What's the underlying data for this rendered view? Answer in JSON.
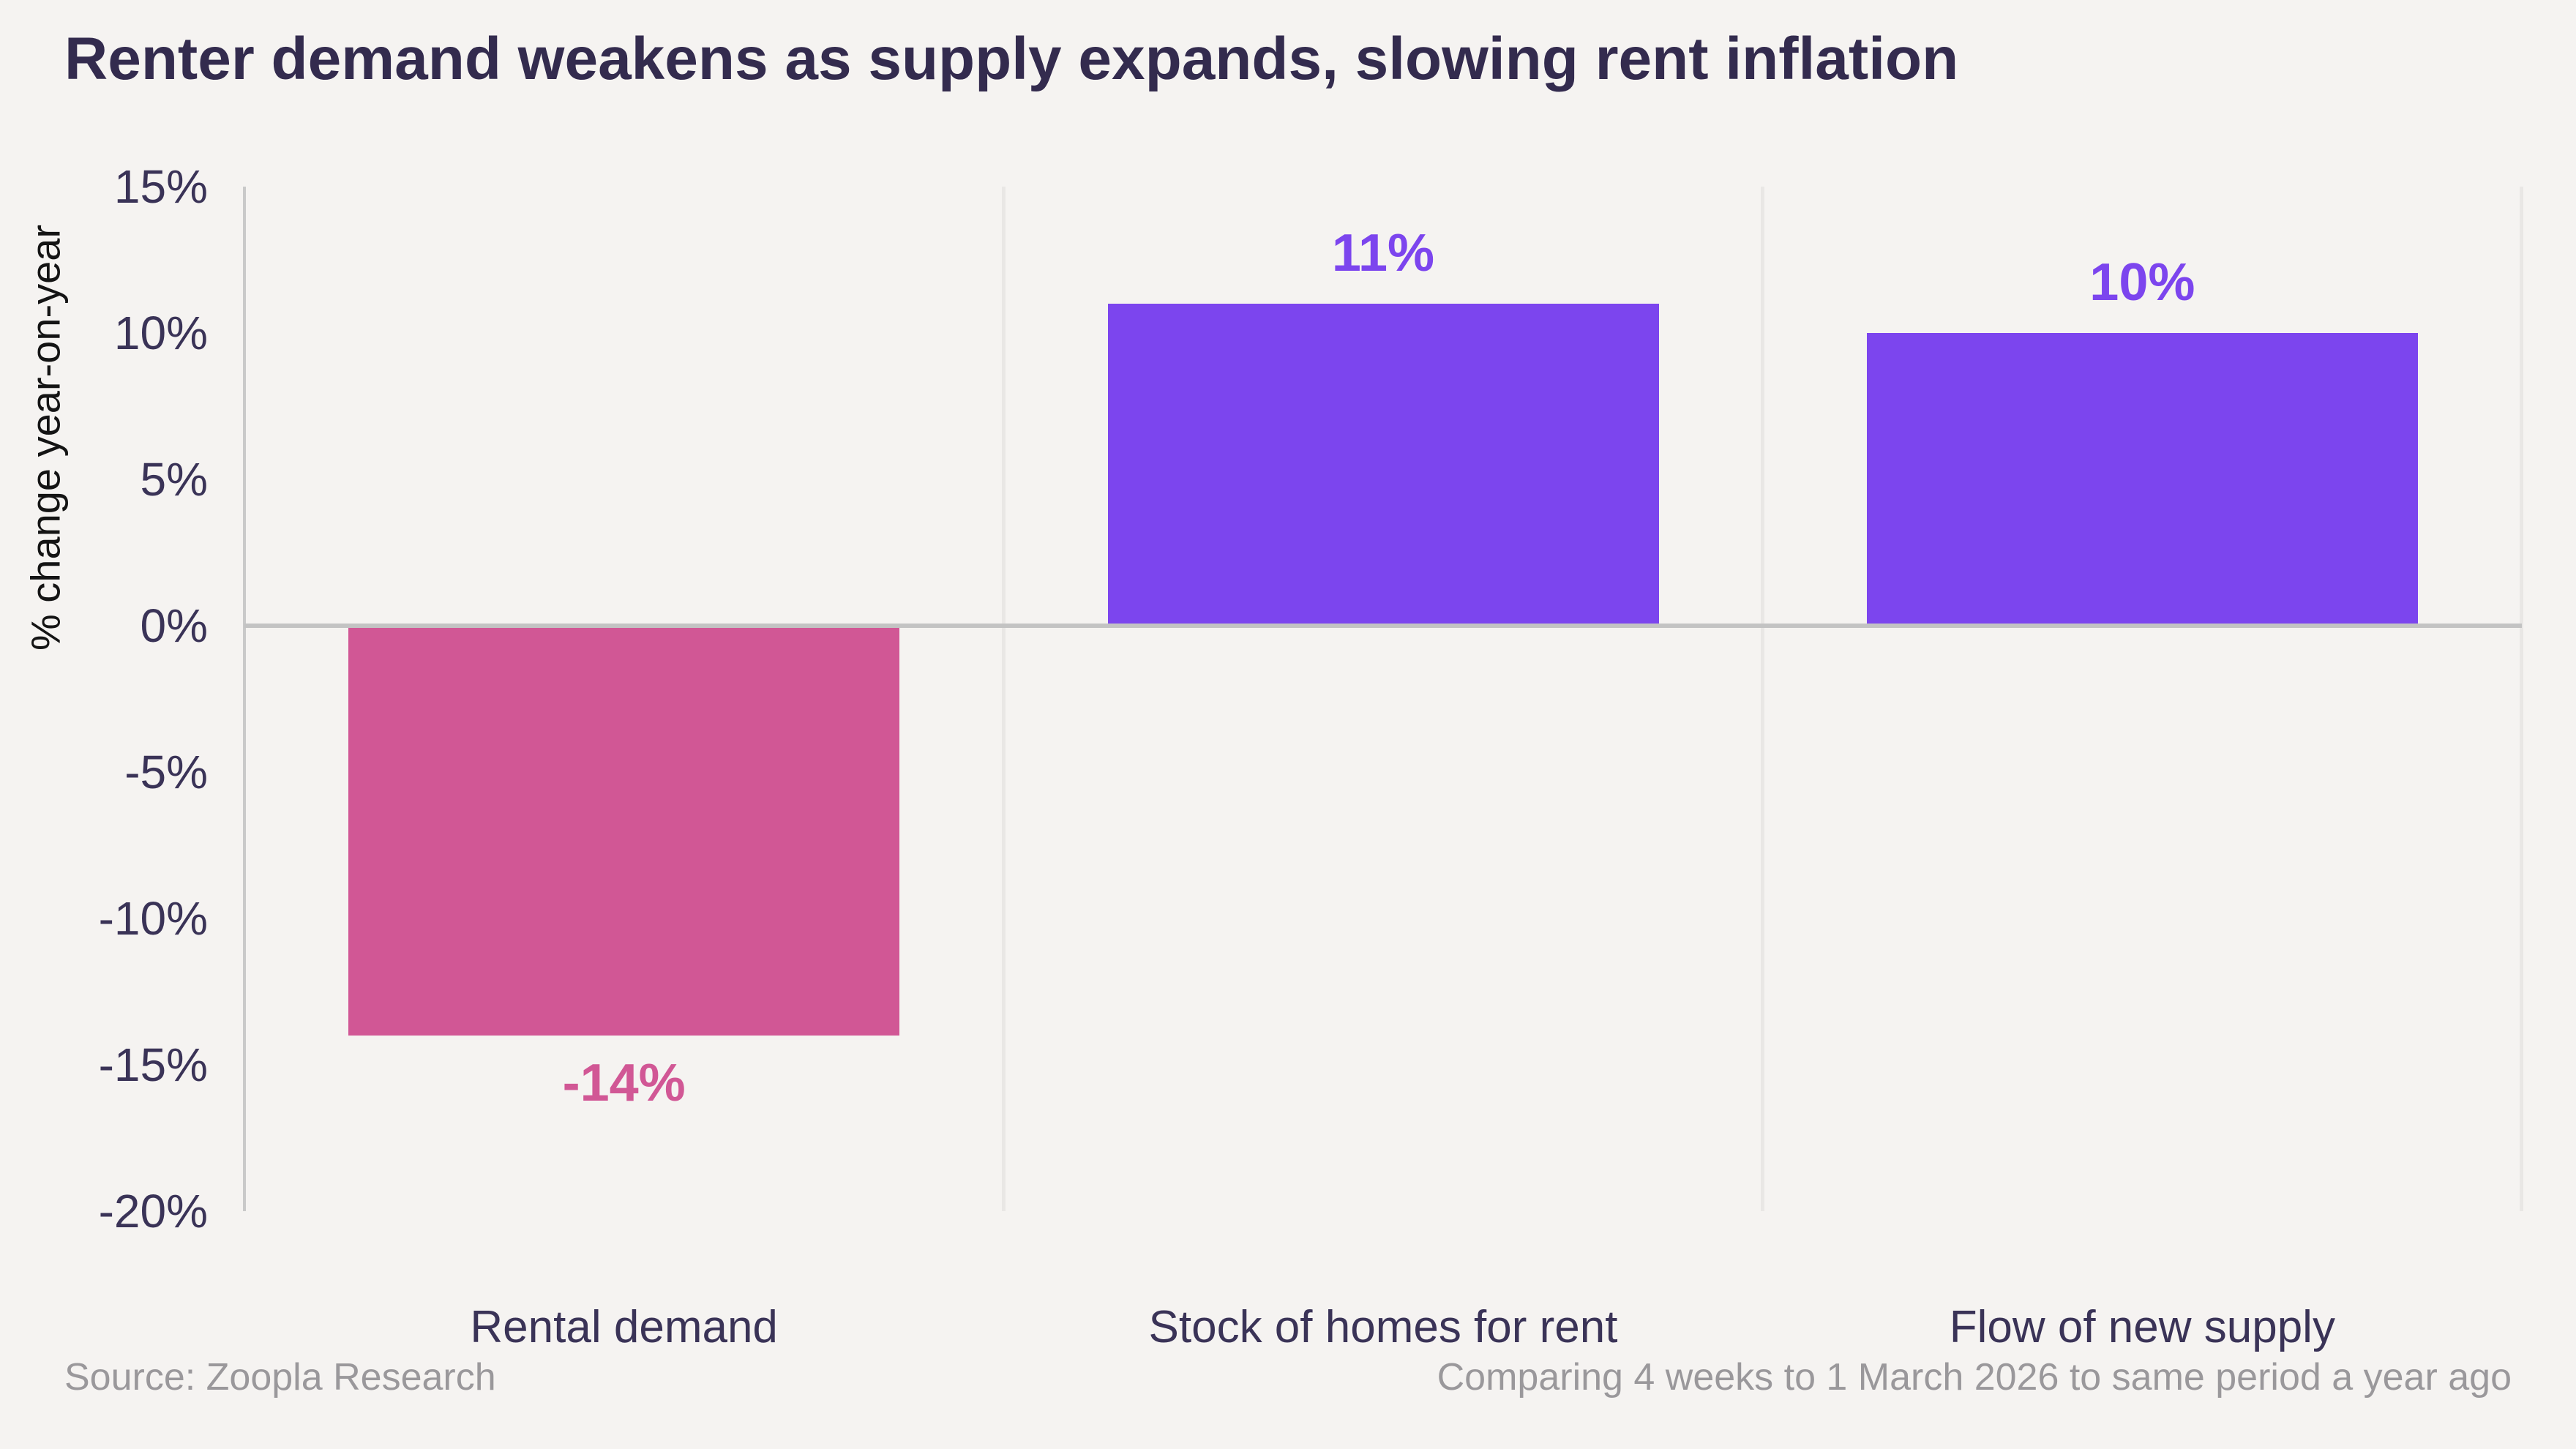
{
  "title": "Renter demand weakens as supply expands, slowing rent inflation",
  "footer": {
    "source": "Source: Zoopla Research",
    "note": "Comparing 4 weeks to 1 March 2026 to same period a year ago"
  },
  "colors": {
    "background": "#f5f3f1",
    "title_text": "#332b4e",
    "axis_text": "#3a3357",
    "axis_label_text": "#141414",
    "zero_line": "#c3c3c3",
    "axis_line": "#c9c9c9",
    "separator_line": "#e9e7e5",
    "footer_text": "#9a989b",
    "negative_bar": "#d15795",
    "positive_bar": "#7c45ee"
  },
  "chart_data": {
    "type": "bar",
    "title": "Renter demand weakens as supply expands, slowing rent inflation",
    "categories": [
      "Rental demand",
      "Stock of homes for rent",
      "Flow of new supply"
    ],
    "values": [
      -14,
      11,
      10
    ],
    "value_labels": [
      "-14%",
      "11%",
      "10%"
    ],
    "bar_colors": [
      "#d15795",
      "#7c45ee",
      "#7c45ee"
    ],
    "label_colors": [
      "#d15795",
      "#7c45ee",
      "#7c45ee"
    ],
    "xlabel": "",
    "ylabel": "% change year-on-year",
    "ylim": [
      -20,
      15
    ],
    "ytick_values": [
      15,
      10,
      5,
      0,
      -5,
      -10,
      -15,
      -20
    ],
    "ytick_labels": [
      "15%",
      "10%",
      "5%",
      "0%",
      "-5%",
      "-10%",
      "-15%",
      "-20%"
    ],
    "grid": "vertical category separators only",
    "legend": "none"
  }
}
